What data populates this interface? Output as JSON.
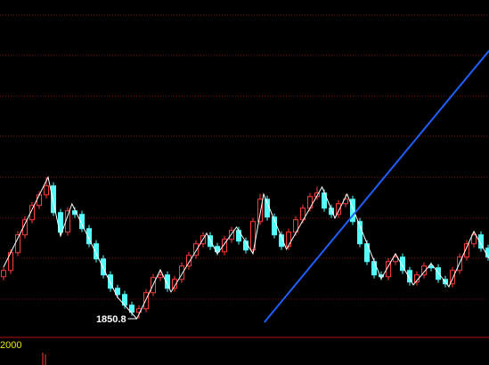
{
  "chart_data": {
    "type": "candlestick",
    "ohlc": [
      [
        1898,
        1909,
        1894,
        1905
      ],
      [
        1905,
        1929,
        1901,
        1925
      ],
      [
        1925,
        1949,
        1921,
        1945
      ],
      [
        1945,
        1966,
        1941,
        1962
      ],
      [
        1962,
        1982,
        1958,
        1978
      ],
      [
        1978,
        1994,
        1974,
        1990
      ],
      [
        1990,
        2009.8,
        1986,
        2000
      ],
      [
        2000,
        2004,
        1966,
        1970
      ],
      [
        1970,
        1974,
        1944,
        1948
      ],
      [
        1948,
        1976,
        1944,
        1972
      ],
      [
        1972,
        1976,
        1964,
        1968
      ],
      [
        1968,
        1972,
        1948,
        1952
      ],
      [
        1952,
        1956,
        1931,
        1935
      ],
      [
        1935,
        1939,
        1914,
        1918
      ],
      [
        1918,
        1922,
        1896,
        1900
      ],
      [
        1900,
        1904,
        1881,
        1885
      ],
      [
        1885,
        1889,
        1874,
        1878
      ],
      [
        1878,
        1882,
        1862,
        1866
      ],
      [
        1866,
        1870,
        1854,
        1858
      ],
      [
        1858,
        1866,
        1850.8,
        1862
      ],
      [
        1862,
        1884,
        1858,
        1880
      ],
      [
        1880,
        1901,
        1876,
        1897
      ],
      [
        1897,
        1906,
        1893,
        1900
      ],
      [
        1900,
        1904,
        1881,
        1885
      ],
      [
        1885,
        1899,
        1881,
        1895
      ],
      [
        1895,
        1914,
        1891,
        1910
      ],
      [
        1910,
        1926,
        1906,
        1922
      ],
      [
        1922,
        1939,
        1918,
        1935
      ],
      [
        1935,
        1948,
        1931,
        1944
      ],
      [
        1944,
        1948,
        1928,
        1932
      ],
      [
        1932,
        1936,
        1922,
        1926
      ],
      [
        1926,
        1944,
        1922,
        1940
      ],
      [
        1940,
        1954,
        1936,
        1950
      ],
      [
        1950,
        1954,
        1934,
        1938
      ],
      [
        1938,
        1942,
        1924,
        1928
      ],
      [
        1928,
        1964,
        1924,
        1960
      ],
      [
        1960,
        1991,
        1956,
        1985
      ],
      [
        1985,
        1989,
        1961,
        1965
      ],
      [
        1965,
        1969,
        1941,
        1945
      ],
      [
        1945,
        1949,
        1928,
        1932
      ],
      [
        1932,
        1952,
        1928,
        1948
      ],
      [
        1948,
        1966,
        1944,
        1962
      ],
      [
        1962,
        1979,
        1958,
        1975
      ],
      [
        1975,
        1992,
        1971,
        1988
      ],
      [
        1988,
        1999,
        1984,
        1992
      ],
      [
        1992,
        1996,
        1971,
        1975
      ],
      [
        1975,
        1979,
        1964,
        1968
      ],
      [
        1968,
        1984,
        1964,
        1980
      ],
      [
        1980,
        1991,
        1976,
        1985
      ],
      [
        1985,
        1989,
        1956,
        1960
      ],
      [
        1960,
        1964,
        1931,
        1935
      ],
      [
        1935,
        1939,
        1911,
        1915
      ],
      [
        1915,
        1919,
        1896,
        1900
      ],
      [
        1900,
        1904,
        1894,
        1898
      ],
      [
        1898,
        1919,
        1894,
        1915
      ],
      [
        1915,
        1924,
        1911,
        1920
      ],
      [
        1920,
        1924,
        1901,
        1905
      ],
      [
        1905,
        1909,
        1888,
        1892
      ],
      [
        1892,
        1904,
        1888,
        1900
      ],
      [
        1900,
        1914,
        1896,
        1910
      ],
      [
        1910,
        1914,
        1904,
        1908
      ],
      [
        1908,
        1912,
        1891,
        1895
      ],
      [
        1895,
        1899,
        1886,
        1890
      ],
      [
        1890,
        1909,
        1886,
        1905
      ],
      [
        1905,
        1924,
        1901,
        1920
      ],
      [
        1920,
        1939,
        1916,
        1935
      ],
      [
        1935,
        1949,
        1931,
        1945
      ],
      [
        1945,
        1949,
        1926,
        1930
      ],
      [
        1930,
        1934,
        1916,
        1920
      ]
    ],
    "up_color": "#ff3c3c",
    "down_color": "#54ffff",
    "zigzag": {
      "color": "#ffffff",
      "x": [
        0,
        6.25,
        8,
        9.6,
        16,
        18.7,
        22,
        23.5,
        28.5,
        30,
        32.7,
        35,
        36.5,
        39.7,
        44.7,
        46.5,
        48.2,
        53,
        55,
        57.5,
        60,
        62.5,
        66,
        68.1
      ],
      "values": [
        1908.8,
        2009.8,
        1943.8,
        1979.8,
        1874.8,
        1850.8,
        1905.8,
        1880.8,
        1946.8,
        1923.8,
        1953.8,
        1923.8,
        1990.8,
        1928.8,
        1998.8,
        1963.8,
        1990.8,
        1895.8,
        1923.8,
        1888.8,
        1912.8,
        1886.8,
        1948.8,
        1918.8
      ]
    },
    "low_label": 1850.8,
    "trend_line": {
      "color": "#1f5fff",
      "x": [
        36.6,
        68.125
      ],
      "values": [
        1846.8,
        2151.8
      ]
    },
    "xlim": [
      -0.5,
      68.125
    ],
    "ylim": [
      1830.8,
      2208.8
    ],
    "subchart_label": "2000"
  }
}
